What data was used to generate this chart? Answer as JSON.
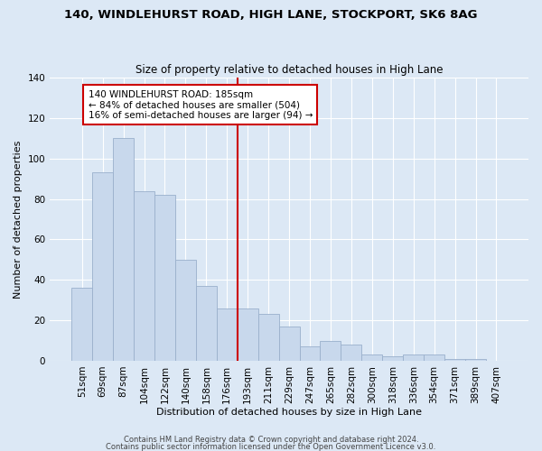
{
  "title1": "140, WINDLEHURST ROAD, HIGH LANE, STOCKPORT, SK6 8AG",
  "title2": "Size of property relative to detached houses in High Lane",
  "xlabel": "Distribution of detached houses by size in High Lane",
  "ylabel": "Number of detached properties",
  "categories": [
    "51sqm",
    "69sqm",
    "87sqm",
    "104sqm",
    "122sqm",
    "140sqm",
    "158sqm",
    "176sqm",
    "193sqm",
    "211sqm",
    "229sqm",
    "247sqm",
    "265sqm",
    "282sqm",
    "300sqm",
    "318sqm",
    "336sqm",
    "354sqm",
    "371sqm",
    "389sqm",
    "407sqm"
  ],
  "values": [
    36,
    93,
    110,
    84,
    82,
    50,
    37,
    26,
    26,
    23,
    17,
    7,
    10,
    8,
    3,
    2,
    3,
    3,
    1,
    1,
    0
  ],
  "bar_color": "#c8d8ec",
  "bar_edge_color": "#9ab0cc",
  "vline_color": "#cc0000",
  "annotation_text": "140 WINDLEHURST ROAD: 185sqm\n← 84% of detached houses are smaller (504)\n16% of semi-detached houses are larger (94) →",
  "annotation_box_color": "#ffffff",
  "annotation_box_edge": "#cc0000",
  "footer1": "Contains HM Land Registry data © Crown copyright and database right 2024.",
  "footer2": "Contains public sector information licensed under the Open Government Licence v3.0.",
  "background_color": "#dce8f5",
  "plot_bg_color": "#dce8f5",
  "ylim": [
    0,
    140
  ],
  "yticks": [
    0,
    20,
    40,
    60,
    80,
    100,
    120,
    140
  ]
}
